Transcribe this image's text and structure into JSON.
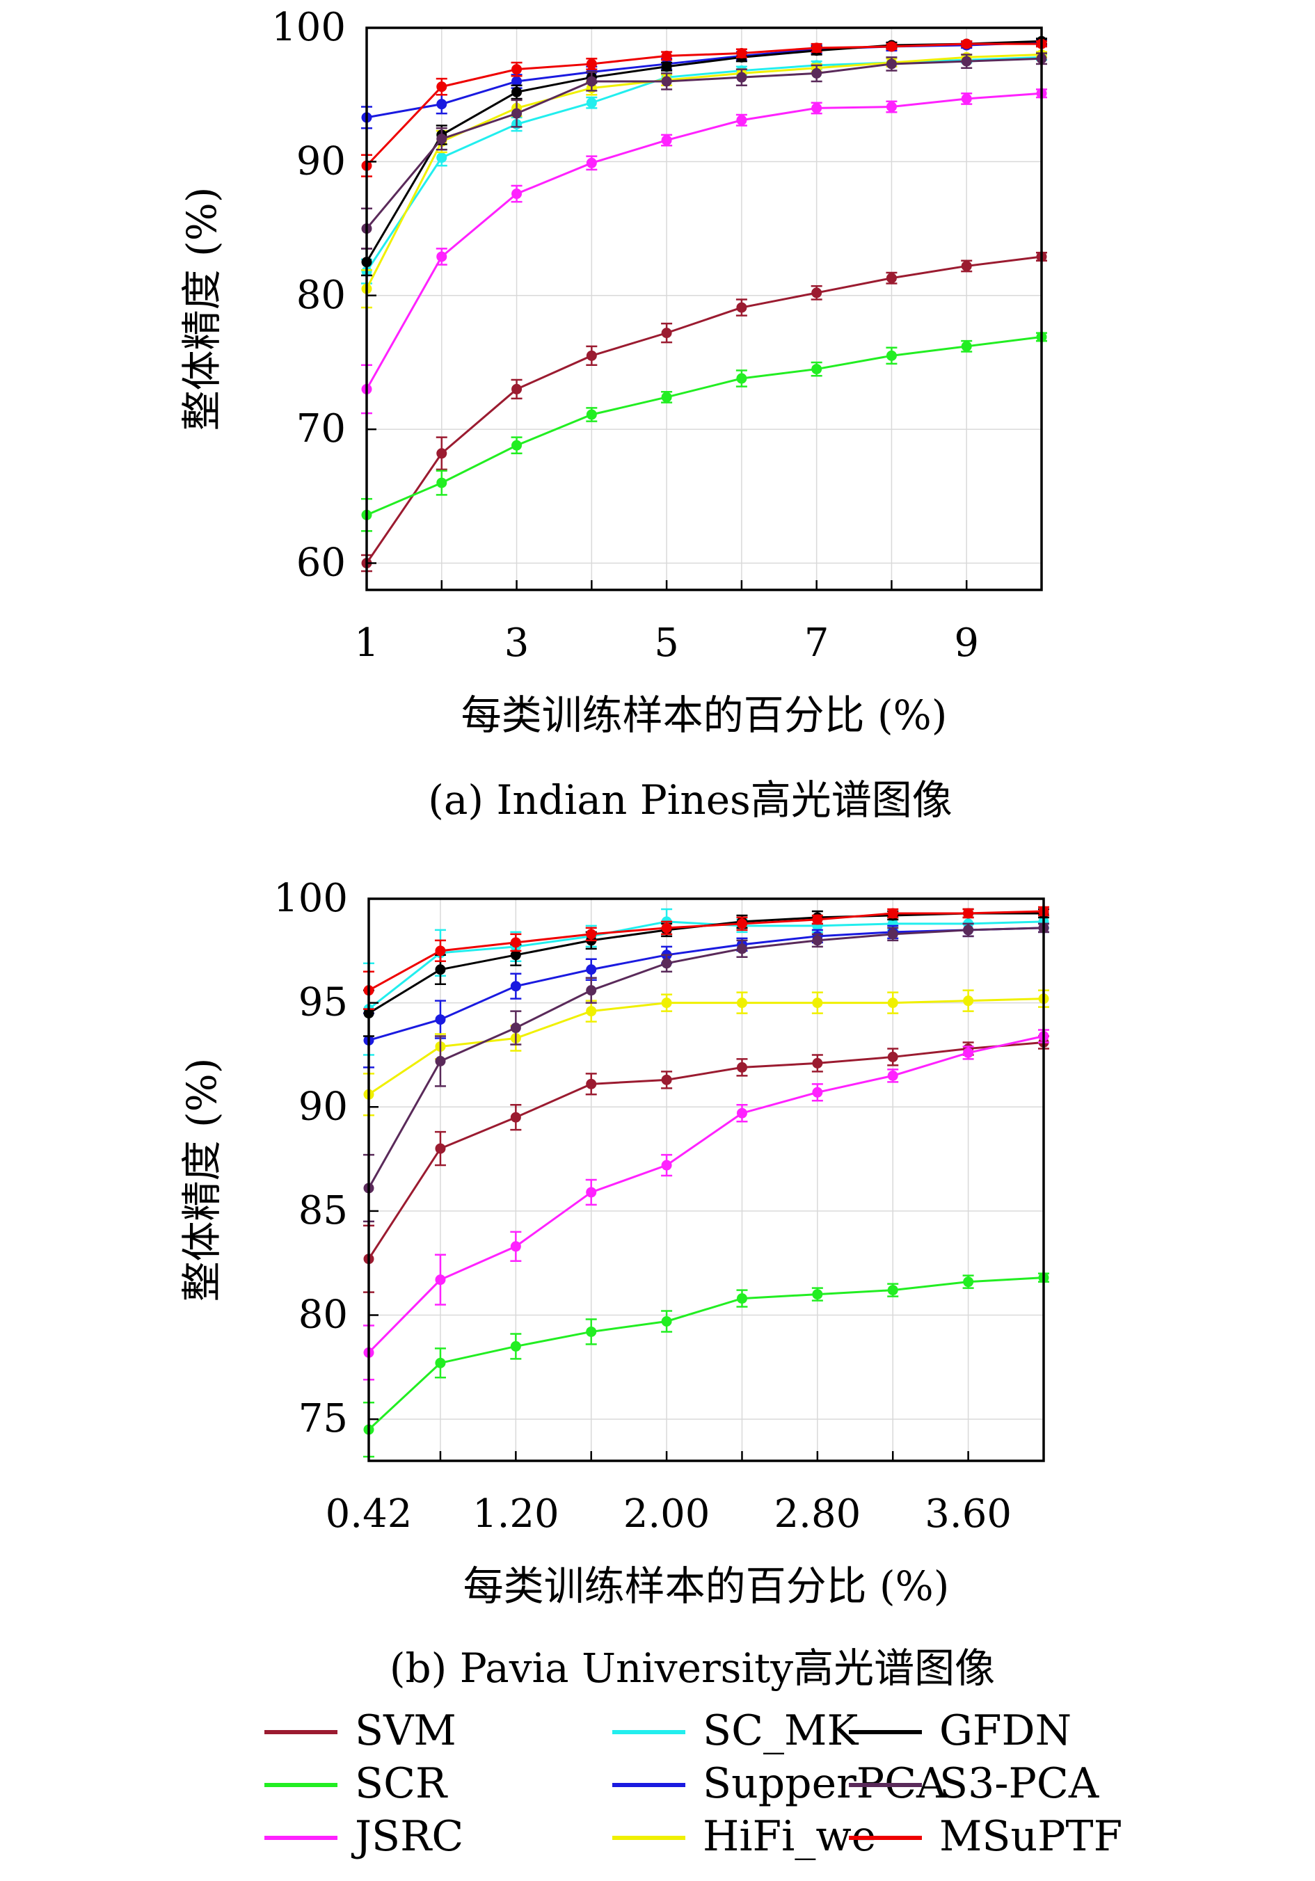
{
  "charts": [
    {
      "caption": "(a) Indian Pines高光谱图像",
      "chart_data": {
        "type": "line",
        "title": "",
        "xlabel": "每类训练样本的百分比 (%)",
        "ylabel": "整体精度 (%)",
        "xlim": [
          1,
          10
        ],
        "ylim": [
          58,
          100
        ],
        "x_ticks": [
          1,
          3,
          5,
          7,
          9
        ],
        "x_tick_labels": [
          "1",
          "3",
          "5",
          "7",
          "9"
        ],
        "y_ticks": [
          60,
          70,
          80,
          90,
          100
        ],
        "y_tick_labels": [
          "60",
          "70",
          "80",
          "90",
          "100"
        ],
        "grid": true,
        "x": [
          1,
          2,
          3,
          4,
          5,
          6,
          7,
          8,
          9,
          10
        ],
        "series": [
          {
            "name": "SVM",
            "color": "#9b1b30",
            "values": [
              60.0,
              68.2,
              73.0,
              75.5,
              77.2,
              79.1,
              80.2,
              81.3,
              82.2,
              82.9
            ],
            "errors": [
              0.6,
              1.2,
              0.7,
              0.7,
              0.7,
              0.6,
              0.5,
              0.4,
              0.4,
              0.3
            ]
          },
          {
            "name": "SCR",
            "color": "#22ee22",
            "values": [
              63.6,
              66.0,
              68.8,
              71.1,
              72.4,
              73.8,
              74.5,
              75.5,
              76.2,
              76.9
            ],
            "errors": [
              1.2,
              0.9,
              0.6,
              0.5,
              0.4,
              0.6,
              0.5,
              0.6,
              0.4,
              0.3
            ]
          },
          {
            "name": "JSRC",
            "color": "#ff22ff",
            "values": [
              73.0,
              82.9,
              87.6,
              89.9,
              91.6,
              93.1,
              94.0,
              94.1,
              94.7,
              95.1
            ],
            "errors": [
              1.8,
              0.6,
              0.6,
              0.5,
              0.4,
              0.4,
              0.4,
              0.4,
              0.4,
              0.3
            ]
          },
          {
            "name": "SC_MK",
            "color": "#22eeee",
            "values": [
              81.8,
              90.3,
              92.8,
              94.4,
              96.3,
              96.8,
              97.2,
              97.4,
              97.6,
              97.8
            ],
            "errors": [
              0.9,
              0.6,
              0.5,
              0.4,
              0.3,
              0.3,
              0.3,
              0.3,
              0.2,
              0.2
            ]
          },
          {
            "name": "SupperPCA",
            "color": "#1a1ae0",
            "values": [
              93.3,
              94.3,
              96.0,
              96.7,
              97.3,
              97.9,
              98.4,
              98.6,
              98.7,
              98.9
            ],
            "errors": [
              0.8,
              0.7,
              0.5,
              0.4,
              0.4,
              0.3,
              0.3,
              0.3,
              0.2,
              0.2
            ]
          },
          {
            "name": "HiFi_we",
            "color": "#f0f000",
            "values": [
              80.5,
              91.5,
              94.0,
              95.5,
              96.1,
              96.6,
              97.0,
              97.4,
              97.8,
              98.0
            ],
            "errors": [
              1.4,
              0.8,
              0.6,
              0.5,
              0.4,
              0.3,
              0.3,
              0.3,
              0.2,
              0.2
            ]
          },
          {
            "name": "GFDN",
            "color": "#000000",
            "values": [
              82.5,
              92.0,
              95.2,
              96.3,
              97.1,
              97.8,
              98.3,
              98.7,
              98.8,
              99.0
            ],
            "errors": [
              1.0,
              0.7,
              0.5,
              0.4,
              0.3,
              0.3,
              0.3,
              0.2,
              0.2,
              0.2
            ]
          },
          {
            "name": "S3-PCA",
            "color": "#5a2a5a",
            "values": [
              85.0,
              91.7,
              93.6,
              96.0,
              96.0,
              96.3,
              96.6,
              97.3,
              97.5,
              97.7
            ],
            "errors": [
              1.5,
              0.8,
              1.0,
              0.7,
              0.6,
              0.6,
              0.6,
              0.5,
              0.5,
              0.4
            ]
          },
          {
            "name": "MSuPTF",
            "color": "#ee0000",
            "values": [
              89.7,
              95.6,
              96.9,
              97.3,
              97.9,
              98.1,
              98.5,
              98.6,
              98.8,
              98.8
            ],
            "errors": [
              0.8,
              0.6,
              0.5,
              0.4,
              0.3,
              0.3,
              0.3,
              0.2,
              0.2,
              0.2
            ]
          }
        ]
      }
    },
    {
      "caption": "(b) Pavia University高光谱图像",
      "chart_data": {
        "type": "line",
        "title": "",
        "xlabel": "每类训练样本的百分比 (%)",
        "ylabel": "整体精度 (%)",
        "xlim": [
          0.42,
          4.0
        ],
        "ylim": [
          73,
          100
        ],
        "x_ticks": [
          0.42,
          1.2,
          2.0,
          2.8,
          3.6
        ],
        "x_tick_labels": [
          "0.42",
          "1.20",
          "2.00",
          "2.80",
          "3.60"
        ],
        "y_ticks": [
          75,
          80,
          85,
          90,
          95,
          100
        ],
        "y_tick_labels": [
          "75",
          "80",
          "85",
          "90",
          "95",
          "100"
        ],
        "grid": true,
        "x": [
          0.42,
          0.8,
          1.2,
          1.6,
          2.0,
          2.4,
          2.8,
          3.2,
          3.6,
          4.0
        ],
        "series": [
          {
            "name": "SVM",
            "color": "#9b1b30",
            "values": [
              82.7,
              88.0,
              89.5,
              91.1,
              91.3,
              91.9,
              92.1,
              92.4,
              92.8,
              93.1
            ],
            "errors": [
              1.6,
              0.8,
              0.6,
              0.5,
              0.4,
              0.4,
              0.4,
              0.4,
              0.3,
              0.3
            ]
          },
          {
            "name": "SCR",
            "color": "#22ee22",
            "values": [
              74.5,
              77.7,
              78.5,
              79.2,
              79.7,
              80.8,
              81.0,
              81.2,
              81.6,
              81.8
            ],
            "errors": [
              1.3,
              0.7,
              0.6,
              0.6,
              0.5,
              0.4,
              0.3,
              0.3,
              0.3,
              0.2
            ]
          },
          {
            "name": "JSRC",
            "color": "#ff22ff",
            "values": [
              78.2,
              81.7,
              83.3,
              85.9,
              87.2,
              89.7,
              90.7,
              91.5,
              92.6,
              93.4
            ],
            "errors": [
              1.3,
              1.2,
              0.7,
              0.6,
              0.5,
              0.4,
              0.4,
              0.3,
              0.3,
              0.3
            ]
          },
          {
            "name": "SC_MK",
            "color": "#22eeee",
            "values": [
              94.7,
              97.4,
              97.7,
              98.2,
              98.9,
              98.7,
              98.7,
              98.8,
              98.8,
              98.9
            ],
            "errors": [
              2.2,
              1.1,
              0.7,
              0.5,
              0.6,
              0.3,
              0.3,
              0.3,
              0.3,
              0.3
            ]
          },
          {
            "name": "SupperPCA",
            "color": "#1a1ae0",
            "values": [
              93.2,
              94.2,
              95.8,
              96.6,
              97.3,
              97.8,
              98.2,
              98.4,
              98.5,
              98.6
            ],
            "errors": [
              1.3,
              0.9,
              0.6,
              0.5,
              0.4,
              0.3,
              0.3,
              0.3,
              0.3,
              0.2
            ]
          },
          {
            "name": "HiFi_we",
            "color": "#f0f000",
            "values": [
              90.6,
              92.9,
              93.3,
              94.6,
              95.0,
              95.0,
              95.0,
              95.0,
              95.1,
              95.2
            ],
            "errors": [
              1.0,
              0.6,
              0.6,
              0.5,
              0.4,
              0.5,
              0.5,
              0.5,
              0.5,
              0.4
            ]
          },
          {
            "name": "GFDN",
            "color": "#000000",
            "values": [
              94.5,
              96.6,
              97.3,
              98.0,
              98.5,
              98.9,
              99.1,
              99.2,
              99.3,
              99.3
            ],
            "errors": [
              1.1,
              0.7,
              0.5,
              0.4,
              0.3,
              0.3,
              0.3,
              0.2,
              0.2,
              0.2
            ]
          },
          {
            "name": "S3-PCA",
            "color": "#5a2a5a",
            "values": [
              86.1,
              92.2,
              93.8,
              95.6,
              96.9,
              97.6,
              98.0,
              98.3,
              98.5,
              98.6
            ],
            "errors": [
              1.6,
              1.2,
              0.8,
              0.6,
              0.4,
              0.4,
              0.3,
              0.3,
              0.3,
              0.2
            ]
          },
          {
            "name": "MSuPTF",
            "color": "#ee0000",
            "values": [
              95.6,
              97.5,
              97.9,
              98.3,
              98.6,
              98.8,
              99.0,
              99.3,
              99.3,
              99.4
            ],
            "errors": [
              0.9,
              0.5,
              0.4,
              0.3,
              0.3,
              0.3,
              0.2,
              0.2,
              0.2,
              0.2
            ]
          }
        ]
      }
    }
  ],
  "legend": {
    "entries": [
      {
        "name": "SVM",
        "color": "#9b1b30"
      },
      {
        "name": "SC_MK",
        "color": "#22eeee"
      },
      {
        "name": "GFDN",
        "color": "#000000"
      },
      {
        "name": "SCR",
        "color": "#22ee22"
      },
      {
        "name": "SupperPCA",
        "color": "#1a1ae0"
      },
      {
        "name": "S3-PCA",
        "color": "#5a2a5a"
      },
      {
        "name": "JSRC",
        "color": "#ff22ff"
      },
      {
        "name": "HiFi_we",
        "color": "#f0f000"
      },
      {
        "name": "MSuPTF",
        "color": "#ee0000"
      }
    ]
  }
}
